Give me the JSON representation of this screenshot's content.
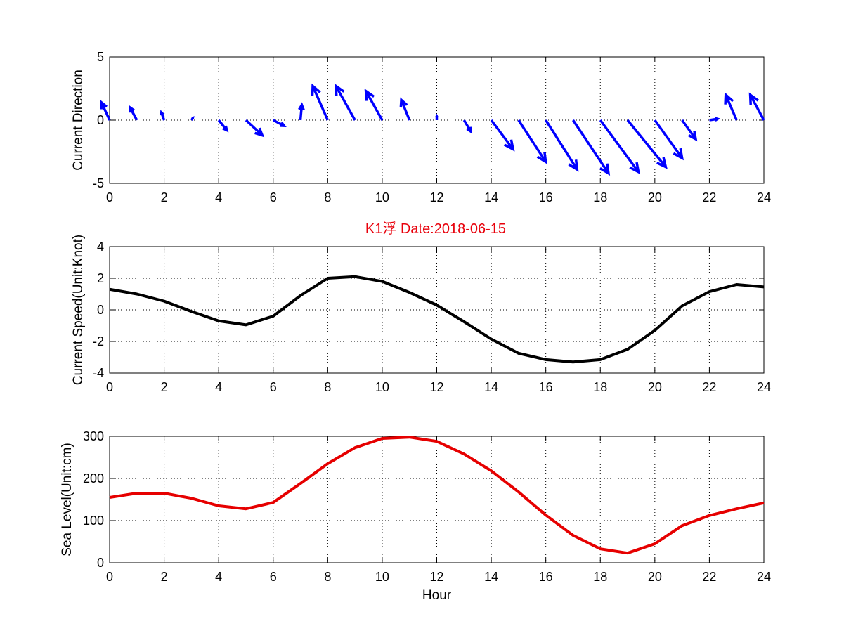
{
  "title": "K1浮   Date:2018-06-15",
  "title_color": "#e8000b",
  "chart_data": [
    {
      "type": "quiver",
      "ylabel": "Current Direction",
      "xlabel": "",
      "xlim": [
        0,
        24
      ],
      "ylim": [
        -5,
        5
      ],
      "xticks": [
        0,
        2,
        4,
        6,
        8,
        10,
        12,
        14,
        16,
        18,
        20,
        22,
        24
      ],
      "yticks": [
        -5,
        0,
        5
      ],
      "grid": true,
      "color": "#0000ff",
      "x": [
        0,
        1,
        2,
        3,
        4,
        5,
        6,
        7,
        8,
        9,
        10,
        11,
        12,
        13,
        14,
        15,
        16,
        17,
        18,
        19,
        20,
        21,
        22,
        23,
        24
      ],
      "u": [
        -0.3,
        -0.25,
        -0.1,
        0.05,
        0.3,
        0.6,
        0.4,
        0.05,
        -0.55,
        -0.7,
        -0.6,
        -0.3,
        0.0,
        0.25,
        0.8,
        1.0,
        1.15,
        1.3,
        1.4,
        1.4,
        1.0,
        0.5,
        0.3,
        -0.4,
        -0.5
      ],
      "v": [
        1.4,
        1.0,
        0.6,
        0.15,
        -0.8,
        -1.2,
        -0.45,
        1.2,
        2.7,
        2.7,
        2.3,
        1.6,
        0.3,
        -0.9,
        -2.3,
        -3.3,
        -3.9,
        -4.2,
        -4.1,
        -3.7,
        -3.0,
        -1.5,
        0.1,
        2.0,
        2.0
      ]
    },
    {
      "type": "line",
      "ylabel": "Current Speed(Unit:Knot)",
      "xlabel": "",
      "xlim": [
        0,
        24
      ],
      "ylim": [
        -4,
        4
      ],
      "xticks": [
        0,
        2,
        4,
        6,
        8,
        10,
        12,
        14,
        16,
        18,
        20,
        22,
        24
      ],
      "yticks": [
        -4,
        -2,
        0,
        2,
        4
      ],
      "grid": true,
      "color": "#000000",
      "x": [
        0,
        1,
        2,
        3,
        4,
        5,
        6,
        7,
        8,
        9,
        10,
        11,
        12,
        13,
        14,
        15,
        16,
        17,
        18,
        19,
        20,
        21,
        22,
        23,
        24
      ],
      "y": [
        1.3,
        1.0,
        0.55,
        -0.1,
        -0.7,
        -0.95,
        -0.4,
        0.9,
        2.0,
        2.1,
        1.8,
        1.1,
        0.3,
        -0.75,
        -1.85,
        -2.75,
        -3.15,
        -3.3,
        -3.15,
        -2.5,
        -1.3,
        0.25,
        1.15,
        1.6,
        1.45
      ]
    },
    {
      "type": "line",
      "ylabel": "Sea Level(Unit:cm)",
      "xlabel": "Hour",
      "xlim": [
        0,
        24
      ],
      "ylim": [
        0,
        300
      ],
      "xticks": [
        0,
        2,
        4,
        6,
        8,
        10,
        12,
        14,
        16,
        18,
        20,
        22,
        24
      ],
      "yticks": [
        0,
        100,
        200,
        300
      ],
      "grid": true,
      "color": "#e60000",
      "x": [
        0,
        1,
        2,
        3,
        4,
        5,
        6,
        7,
        8,
        9,
        10,
        11,
        12,
        13,
        14,
        15,
        16,
        17,
        18,
        19,
        20,
        21,
        22,
        23,
        24
      ],
      "y": [
        155,
        165,
        165,
        153,
        135,
        128,
        143,
        188,
        235,
        273,
        295,
        298,
        288,
        258,
        218,
        168,
        113,
        65,
        33,
        23,
        45,
        88,
        112,
        128,
        142
      ]
    }
  ]
}
